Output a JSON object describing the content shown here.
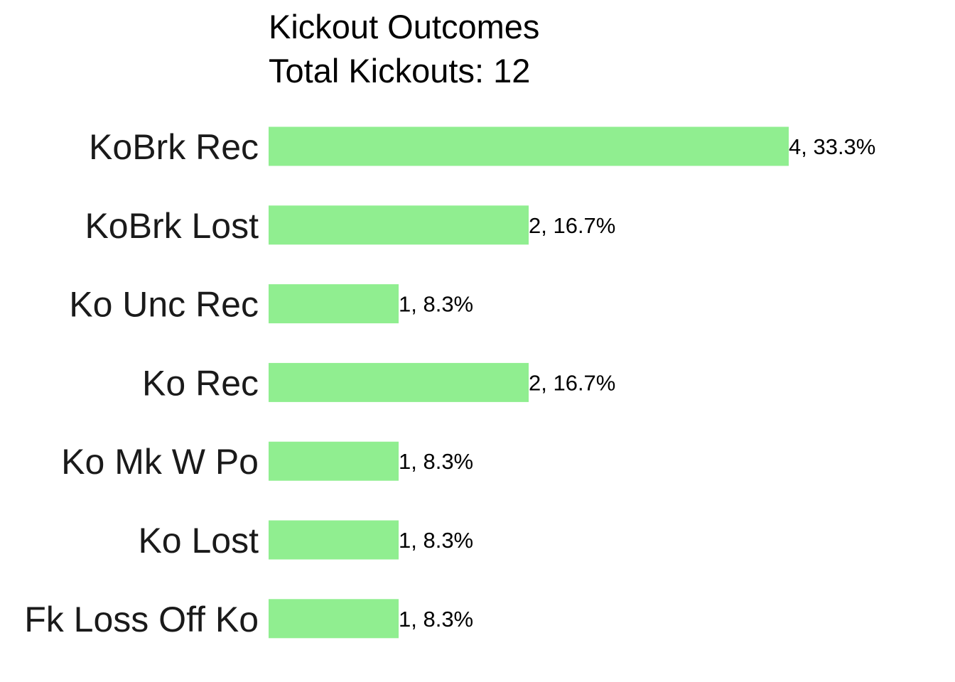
{
  "chart_data": {
    "type": "bar",
    "orientation": "horizontal",
    "title": "Kickout Outcomes",
    "subtitle": "Total Kickouts: 12",
    "categories": [
      "KoBrk Rec",
      "KoBrk Lost",
      "Ko Unc Rec",
      "Ko Rec",
      "Ko Mk W Po",
      "Ko Lost",
      "Fk Loss Off Ko"
    ],
    "values": [
      4,
      2,
      1,
      2,
      1,
      1,
      1
    ],
    "data_labels": [
      "4, 33.3%",
      "2, 16.7%",
      "1, 8.3%",
      "2, 16.7%",
      "1, 8.3%",
      "1, 8.3%",
      "1, 8.3%"
    ],
    "xlim": [
      0,
      4
    ],
    "xlabel": "",
    "ylabel": "",
    "grid": false,
    "legend": "none",
    "bar_color": "#90EE90"
  }
}
